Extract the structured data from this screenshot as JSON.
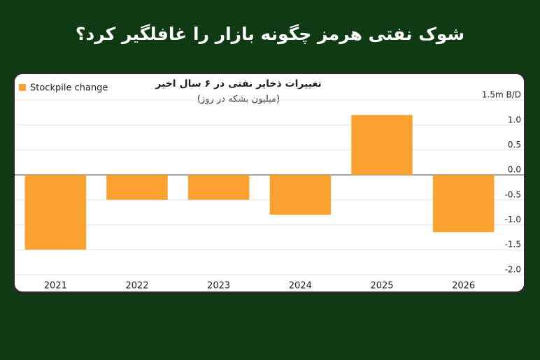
{
  "page_title": "شوک نفتی هرمز چگونه بازار را غافلگیر کرد؟",
  "chart_data": {
    "type": "bar",
    "title": "تغییرات ذخایر نفتی در ۶ سال اخیر",
    "subtitle": "(میلیون بشکه در روز)",
    "categories": [
      "2021",
      "2022",
      "2023",
      "2024",
      "2025",
      "2026"
    ],
    "series": [
      {
        "name": "Stockpile change",
        "color": "#f9a22f",
        "values": [
          -1.5,
          -0.5,
          -0.5,
          -0.8,
          1.2,
          -1.15
        ]
      }
    ],
    "ylim": [
      -2.1,
      1.6
    ],
    "yticks": [
      {
        "value": 1.5,
        "label": "1.5m B/D"
      },
      {
        "value": 1,
        "label": "1.0"
      },
      0.5,
      {
        "value": 0,
        "label": "0.0"
      },
      -0.5,
      {
        "value": -1,
        "label": "-1.0"
      },
      -1.5,
      {
        "value": -2,
        "label": "-2.0"
      }
    ],
    "grid": true,
    "legend": "top-left"
  }
}
